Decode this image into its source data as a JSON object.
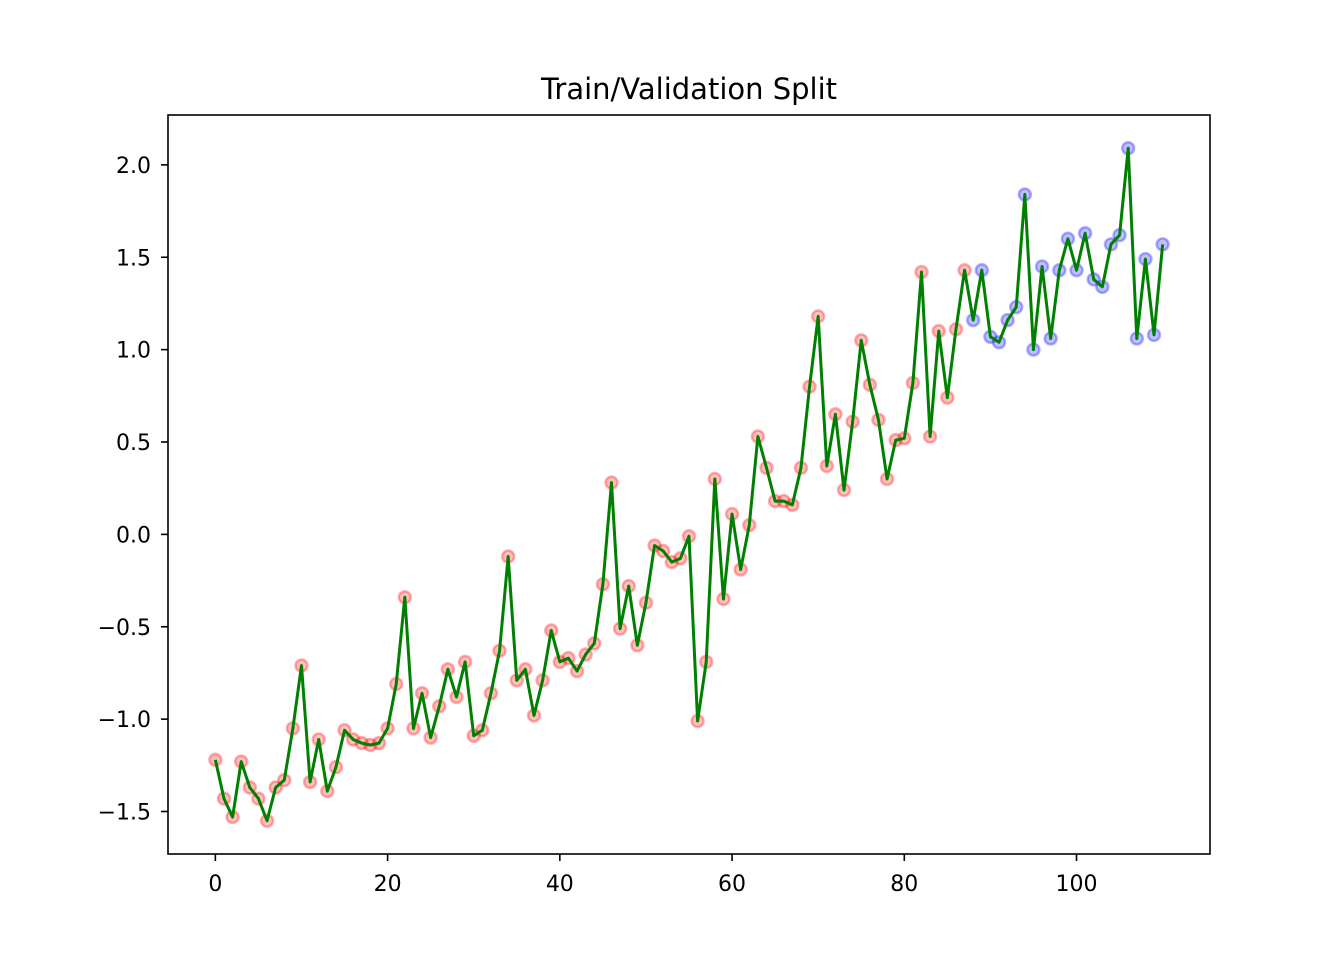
{
  "chart_data": {
    "type": "line",
    "title": "Train/Validation Split",
    "xlabel": "",
    "ylabel": "",
    "xlim": [
      -5.5,
      115.5
    ],
    "ylim": [
      -1.73,
      2.27
    ],
    "x_ticks": [
      0,
      20,
      40,
      60,
      80,
      100
    ],
    "x_tick_labels": [
      "0",
      "20",
      "40",
      "60",
      "80",
      "100"
    ],
    "y_ticks": [
      -1.5,
      -1.0,
      -0.5,
      0.0,
      0.5,
      1.0,
      1.5,
      2.0
    ],
    "y_tick_labels": [
      "−1.5",
      "−1.0",
      "−0.5",
      "0.0",
      "0.5",
      "1.0",
      "1.5",
      "2.0"
    ],
    "grid": false,
    "legend": "none",
    "split_index": 88,
    "colors": {
      "line": "#008000",
      "train_marker": "#ff0000",
      "validation_marker": "#0000ff"
    },
    "y": [
      -1.22,
      -1.43,
      -1.53,
      -1.23,
      -1.37,
      -1.43,
      -1.55,
      -1.37,
      -1.33,
      -1.05,
      -0.71,
      -1.34,
      -1.11,
      -1.39,
      -1.26,
      -1.06,
      -1.11,
      -1.13,
      -1.14,
      -1.13,
      -1.05,
      -0.81,
      -0.34,
      -1.05,
      -0.86,
      -1.1,
      -0.93,
      -0.73,
      -0.88,
      -0.69,
      -1.09,
      -1.06,
      -0.86,
      -0.63,
      -0.12,
      -0.79,
      -0.73,
      -0.98,
      -0.79,
      -0.52,
      -0.69,
      -0.67,
      -0.74,
      -0.65,
      -0.59,
      -0.27,
      0.28,
      -0.51,
      -0.28,
      -0.6,
      -0.37,
      -0.06,
      -0.09,
      -0.15,
      -0.13,
      -0.01,
      -1.01,
      -0.69,
      0.3,
      -0.35,
      0.11,
      -0.19,
      0.05,
      0.53,
      0.36,
      0.18,
      0.18,
      0.16,
      0.36,
      0.8,
      1.18,
      0.37,
      0.65,
      0.24,
      0.61,
      1.05,
      0.81,
      0.62,
      0.3,
      0.51,
      0.52,
      0.82,
      1.42,
      0.53,
      1.1,
      0.74,
      1.11,
      1.43,
      1.16,
      1.43,
      1.07,
      1.04,
      1.16,
      1.23,
      1.84,
      1.0,
      1.45,
      1.06,
      1.43,
      1.6,
      1.43,
      1.63,
      1.38,
      1.34,
      1.57,
      1.62,
      2.09,
      1.06,
      1.49,
      1.08,
      1.57
    ]
  }
}
